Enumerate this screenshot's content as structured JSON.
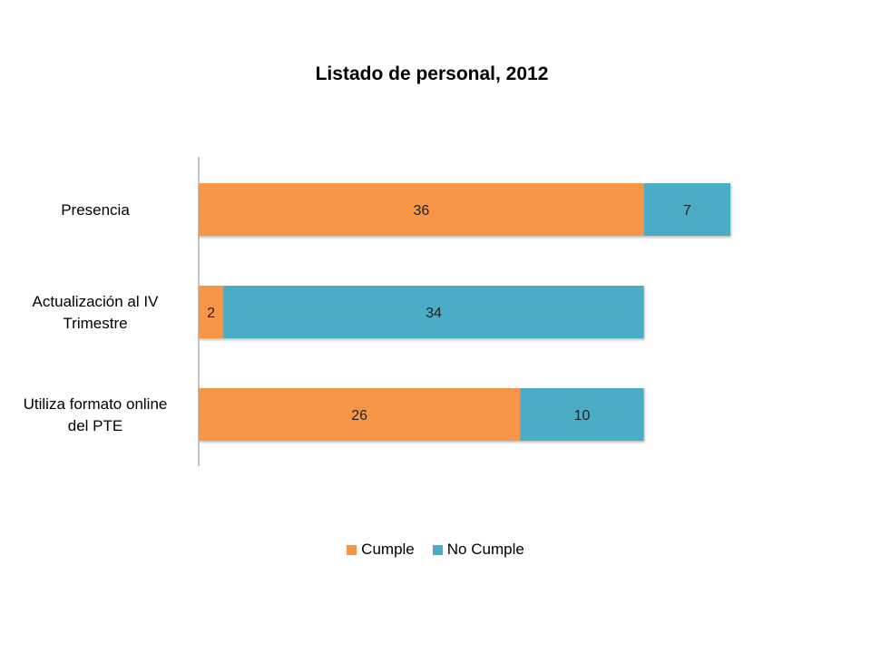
{
  "chart_data": {
    "type": "bar",
    "orientation": "horizontal",
    "stacked": true,
    "title": "Listado de personal, 2012",
    "xlabel": "",
    "ylabel": "",
    "categories": [
      "Presencia",
      "Actualización al IV Trimestre",
      "Utiliza formato online del PTE"
    ],
    "series": [
      {
        "name": "Cumple",
        "color": "#f79646",
        "values": [
          36,
          2,
          26
        ]
      },
      {
        "name": "No Cumple",
        "color": "#4bacc6",
        "values": [
          7,
          34,
          10
        ]
      }
    ],
    "xlim": [
      0,
      44
    ],
    "grid": false,
    "data_labels": true,
    "legend_position": "bottom"
  }
}
